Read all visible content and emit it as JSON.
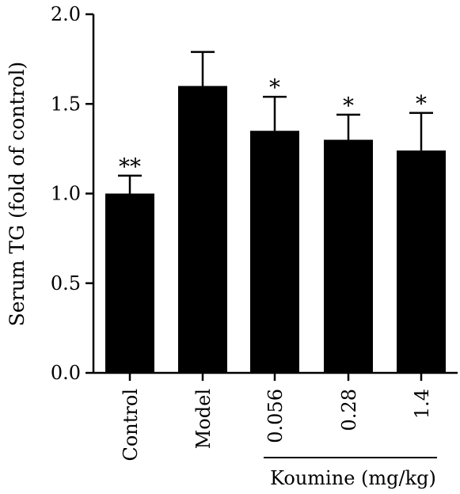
{
  "chart_data": {
    "type": "bar",
    "title": "",
    "xlabel": "",
    "ylabel": "Serum TG (fold of control)",
    "ylim": [
      0,
      2.0
    ],
    "yticks": [
      0.0,
      0.5,
      1.0,
      1.5,
      2.0
    ],
    "ytick_labels": [
      "0.0",
      "0.5",
      "1.0",
      "1.5",
      "2.0"
    ],
    "categories": [
      "Control",
      "Model",
      "0.056",
      "0.28",
      "1.4"
    ],
    "values": [
      1.0,
      1.6,
      1.35,
      1.3,
      1.24
    ],
    "error_upper": [
      0.1,
      0.19,
      0.19,
      0.14,
      0.21
    ],
    "significance": [
      "**",
      "",
      "*",
      "*",
      "*"
    ],
    "group_label": "Koumine (mg/kg)",
    "bar_color": "#000000",
    "grid": false
  }
}
